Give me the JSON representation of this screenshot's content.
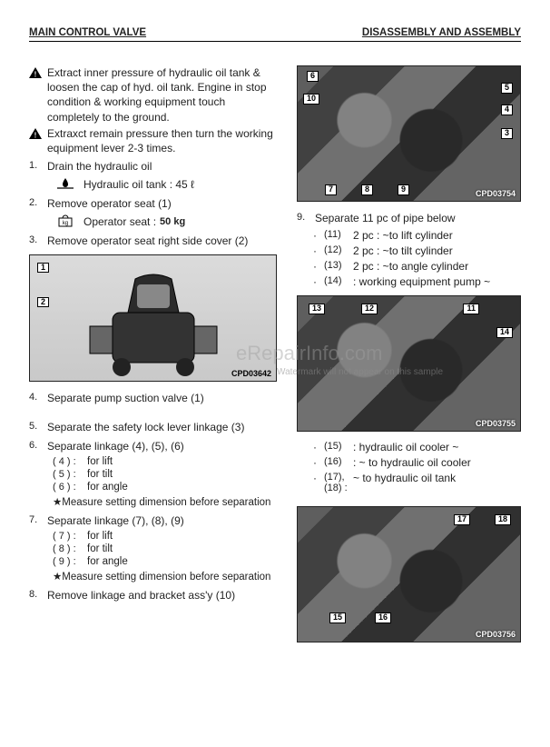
{
  "header": {
    "left": "MAIN CONTROL VALVE",
    "right": "DISASSEMBLY AND ASSEMBLY"
  },
  "watermark": {
    "main": "eRepairInfo.com",
    "sub": "Watermark will not appear on this sample"
  },
  "left": {
    "warn1": "Extract inner pressure of hydraulic oil tank & loosen the cap of hyd. oil tank. Engine in stop condition & working equipment touch completely to the ground.",
    "warn2": "Extraxct remain pressure then turn the working equipment lever 2-3 times.",
    "s1_num": "1.",
    "s1": "Drain the hydraulic oil",
    "hydOilLine": "Hydraulic oil tank : 45 ℓ",
    "s2_num": "2.",
    "s2": "Remove operator seat (1)",
    "opSeatLine": "Operator seat :",
    "opSeatWeight": "50 kg",
    "s3_num": "3.",
    "s3": "Remove operator seat right side cover (2)",
    "fig1": {
      "label": "CPD03642",
      "nums": [
        "1",
        "2"
      ]
    },
    "s4_num": "4.",
    "s4": "Separate pump suction valve (1)",
    "s5_num": "5.",
    "s5": "Separate the safety lock lever linkage (3)",
    "s6_num": "6.",
    "s6": "Separate linkage (4), (5), (6)",
    "s6_items": [
      {
        "n": "( 4 ) :",
        "t": "for lift"
      },
      {
        "n": "( 5 ) :",
        "t": "for tilt"
      },
      {
        "n": "( 6 ) :",
        "t": "for angle"
      }
    ],
    "s6_star": "★Measure setting dimension before separation",
    "s7_num": "7.",
    "s7": "Separate linkage (7), (8), (9)",
    "s7_items": [
      {
        "n": "( 7 ) :",
        "t": "for lift"
      },
      {
        "n": "( 8 ) :",
        "t": "for tilt"
      },
      {
        "n": "( 9 ) :",
        "t": "for angle"
      }
    ],
    "s7_star": "★Measure setting dimension before separation",
    "s8_num": "8.",
    "s8": "Remove linkage and bracket ass'y (10)"
  },
  "right": {
    "fig2": {
      "label": "CPD03754",
      "nums": [
        "6",
        "10",
        "5",
        "4",
        "3",
        "7",
        "8",
        "9"
      ]
    },
    "s9_num": "9.",
    "s9": "Separate 11 pc of pipe below",
    "s9_items": [
      {
        "n": "(11)",
        "t": "2 pc : ~to lift cylinder"
      },
      {
        "n": "(12)",
        "t": "2 pc : ~to tilt cylinder"
      },
      {
        "n": "(13)",
        "t": "2 pc : ~to angle cylinder"
      },
      {
        "n": "(14)",
        "t": ": working equipment pump ~"
      }
    ],
    "fig3": {
      "label": "CPD03755",
      "nums": [
        "13",
        "12",
        "11",
        "14"
      ]
    },
    "r2_items": [
      {
        "n": "(15)",
        "t": ": hydraulic oil cooler ~"
      },
      {
        "n": "(16)",
        "t": ": ~ to hydraulic oil cooler"
      },
      {
        "n": "(17), (18) :",
        "t": "~ to hydraulic oil tank"
      }
    ],
    "fig4": {
      "label": "CPD03756",
      "nums": [
        "17",
        "18",
        "15",
        "16"
      ]
    }
  },
  "colors": {
    "text": "#222222",
    "bg": "#ffffff",
    "rule": "#000000",
    "figBg": "#555555"
  }
}
